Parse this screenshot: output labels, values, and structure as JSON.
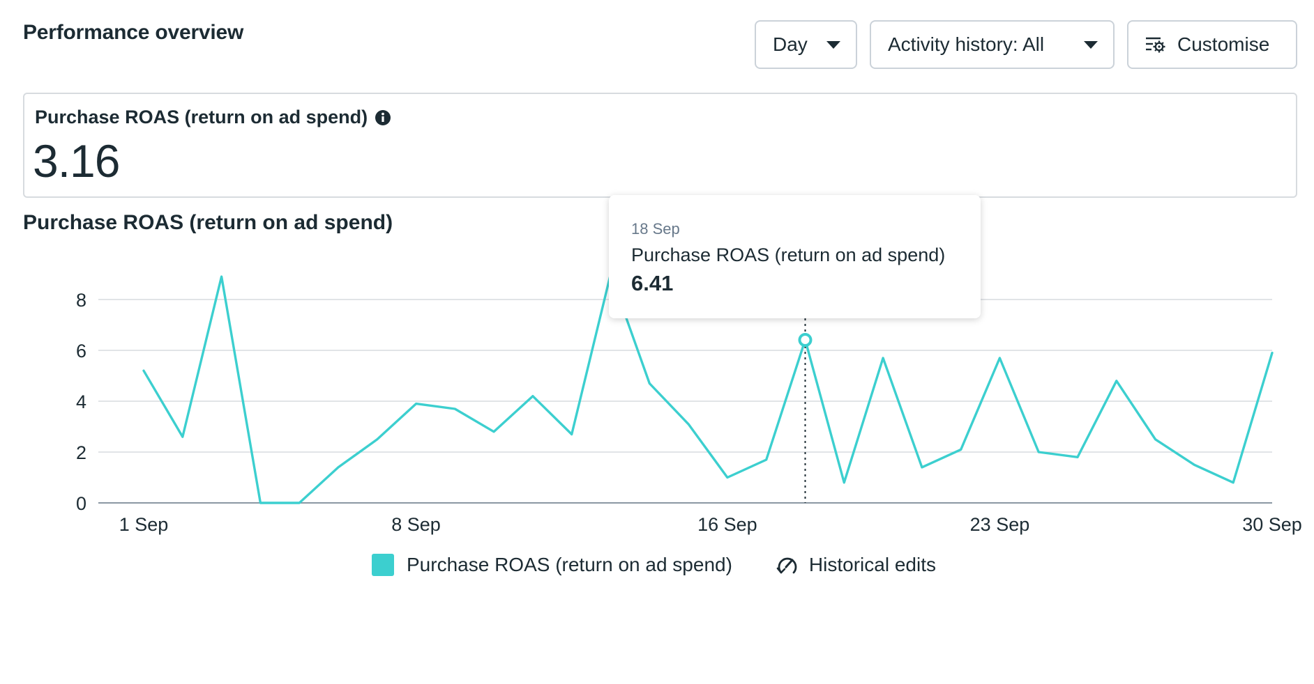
{
  "header": {
    "title": "Performance overview",
    "day_label": "Day",
    "activity_label": "Activity history: All",
    "customise_label": "Customise"
  },
  "metric": {
    "label": "Purchase ROAS (return on ad spend)",
    "value": "3.16"
  },
  "chart_title": "Purchase ROAS (return on ad spend)",
  "tooltip": {
    "date": "18 Sep",
    "series": "Purchase ROAS (return on ad spend)",
    "value": "6.41"
  },
  "legend": {
    "series_label": "Purchase ROAS (return on ad spend)",
    "historical_label": "Historical edits"
  },
  "colors": {
    "series": "#3ccfcf",
    "grid": "#d7dbdf",
    "axis": "#1c2b33"
  },
  "icons": {
    "day_caret": "caret-down-icon",
    "activity_caret": "caret-down-icon",
    "customise": "customise-sliders-gear-icon",
    "info": "info-icon",
    "historical": "historical-edits-icon"
  },
  "chart_data": {
    "type": "line",
    "title": "Purchase ROAS (return on ad spend)",
    "xlabel": "",
    "ylabel": "",
    "ylim": [
      0,
      8
    ],
    "yticks": [
      0,
      2,
      4,
      6,
      8
    ],
    "xtick_labels": [
      "1 Sep",
      "8 Sep",
      "16 Sep",
      "23 Sep",
      "30 Sep"
    ],
    "xtick_days": [
      1,
      8,
      16,
      23,
      30
    ],
    "grid": true,
    "legend_position": "bottom",
    "highlight": {
      "day": 18,
      "label": "18 Sep",
      "value": 6.41
    },
    "series": [
      {
        "name": "Purchase ROAS (return on ad spend)",
        "x": [
          1,
          2,
          3,
          4,
          5,
          6,
          7,
          8,
          9,
          10,
          11,
          12,
          13,
          14,
          15,
          16,
          17,
          18,
          19,
          20,
          21,
          22,
          23,
          24,
          25,
          26,
          27,
          28,
          29,
          30
        ],
        "values": [
          5.2,
          2.6,
          8.9,
          0.0,
          0.0,
          1.4,
          2.5,
          3.9,
          3.7,
          2.8,
          4.2,
          2.7,
          9.0,
          4.7,
          3.1,
          1.0,
          1.7,
          6.41,
          0.8,
          5.7,
          1.4,
          2.1,
          5.7,
          2.0,
          1.8,
          4.8,
          2.5,
          1.5,
          0.8,
          5.9
        ]
      }
    ]
  }
}
